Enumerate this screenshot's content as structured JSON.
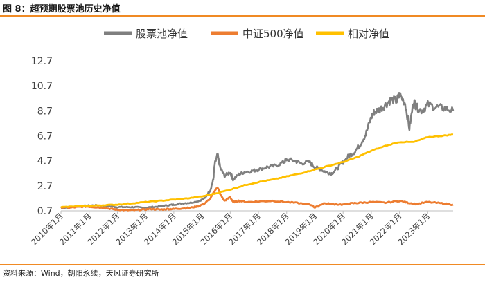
{
  "figure_title": "图 8：超预期股票池历史净值",
  "source": "资料来源：Wind，朝阳永续，天风证券研究所",
  "chart_data": {
    "type": "line",
    "title": "超预期股票池历史净值",
    "xlabel": "",
    "ylabel": "",
    "ylim": [
      0.7,
      12.7
    ],
    "yticks": [
      "0.7",
      "2.7",
      "4.7",
      "6.7",
      "8.7",
      "10.7",
      "12.7"
    ],
    "xlim": [
      2010.0,
      2023.9
    ],
    "categories": [
      "2010年1月",
      "2011年1月",
      "2012年1月",
      "2013年1月",
      "2014年1月",
      "2015年1月",
      "2016年1月",
      "2017年1月",
      "2018年1月",
      "2019年1月",
      "2020年1月",
      "2021年1月",
      "2022年1月",
      "2023年1月"
    ],
    "legend_position": "top",
    "series": [
      {
        "name": "股票池净值",
        "color": "#7f7f7f",
        "x": [
          2010.0,
          2010.3,
          2010.6,
          2010.9,
          2011.2,
          2011.5,
          2011.8,
          2012.0,
          2012.3,
          2012.6,
          2012.9,
          2013.2,
          2013.5,
          2013.8,
          2014.0,
          2014.3,
          2014.6,
          2014.9,
          2015.1,
          2015.3,
          2015.4,
          2015.45,
          2015.55,
          2015.65,
          2015.8,
          2016.0,
          2016.1,
          2016.3,
          2016.5,
          2016.8,
          2017.0,
          2017.3,
          2017.6,
          2017.9,
          2018.0,
          2018.3,
          2018.5,
          2018.8,
          2019.0,
          2019.2,
          2019.4,
          2019.6,
          2019.8,
          2020.0,
          2020.2,
          2020.4,
          2020.6,
          2020.8,
          2021.0,
          2021.1,
          2021.3,
          2021.5,
          2021.7,
          2021.9,
          2022.0,
          2022.2,
          2022.35,
          2022.5,
          2022.6,
          2022.8,
          2023.0,
          2023.3,
          2023.6,
          2023.9
        ],
        "values": [
          0.9,
          1.0,
          1.05,
          1.1,
          1.15,
          1.1,
          1.05,
          1.0,
          1.0,
          1.0,
          0.95,
          1.0,
          1.05,
          1.15,
          1.2,
          1.3,
          1.35,
          1.5,
          1.7,
          2.4,
          3.2,
          4.4,
          5.2,
          4.1,
          3.5,
          3.8,
          3.2,
          3.6,
          3.8,
          3.9,
          4.0,
          4.2,
          4.3,
          4.6,
          4.8,
          4.7,
          4.5,
          4.6,
          4.2,
          4.0,
          3.8,
          3.7,
          4.1,
          4.6,
          5.1,
          5.4,
          6.0,
          6.8,
          8.2,
          8.6,
          8.8,
          9.2,
          9.6,
          9.5,
          10.0,
          9.3,
          7.3,
          9.5,
          9.0,
          8.7,
          9.2,
          9.0,
          8.9,
          8.7
        ]
      },
      {
        "name": "中证500净值",
        "color": "#ed7d31",
        "x": [
          2010.0,
          2010.3,
          2010.6,
          2010.9,
          2011.2,
          2011.5,
          2011.8,
          2012.0,
          2012.3,
          2012.6,
          2012.9,
          2013.2,
          2013.5,
          2013.8,
          2014.0,
          2014.3,
          2014.6,
          2014.9,
          2015.1,
          2015.3,
          2015.45,
          2015.55,
          2015.65,
          2015.8,
          2016.0,
          2016.1,
          2016.3,
          2016.6,
          2017.0,
          2017.5,
          2018.0,
          2018.5,
          2018.9,
          2019.0,
          2019.3,
          2019.6,
          2020.0,
          2020.3,
          2020.6,
          2021.0,
          2021.5,
          2022.0,
          2022.3,
          2022.6,
          2023.0,
          2023.5,
          2023.9
        ],
        "values": [
          1.0,
          0.95,
          1.0,
          1.05,
          1.0,
          0.95,
          0.85,
          0.8,
          0.75,
          0.75,
          0.8,
          0.85,
          0.8,
          0.85,
          0.85,
          0.9,
          0.95,
          1.1,
          1.3,
          1.7,
          2.3,
          2.6,
          2.0,
          1.5,
          1.8,
          1.4,
          1.5,
          1.4,
          1.45,
          1.5,
          1.4,
          1.3,
          1.15,
          0.95,
          1.3,
          1.25,
          1.2,
          1.3,
          1.35,
          1.4,
          1.35,
          1.5,
          1.35,
          1.25,
          1.4,
          1.3,
          1.2
        ]
      },
      {
        "name": "相对净值",
        "color": "#ffc000",
        "x": [
          2010.0,
          2010.5,
          2011.0,
          2011.5,
          2012.0,
          2012.5,
          2013.0,
          2013.5,
          2014.0,
          2014.5,
          2015.0,
          2015.5,
          2016.0,
          2016.5,
          2017.0,
          2017.5,
          2018.0,
          2018.5,
          2019.0,
          2019.5,
          2020.0,
          2020.5,
          2021.0,
          2021.5,
          2022.0,
          2022.5,
          2023.0,
          2023.5,
          2023.9
        ],
        "values": [
          1.0,
          1.05,
          1.1,
          1.15,
          1.2,
          1.3,
          1.4,
          1.5,
          1.6,
          1.7,
          1.85,
          2.1,
          2.4,
          2.75,
          3.0,
          3.2,
          3.45,
          3.7,
          4.0,
          4.3,
          4.6,
          5.0,
          5.5,
          5.9,
          6.2,
          6.2,
          6.6,
          6.7,
          6.8
        ]
      }
    ]
  }
}
